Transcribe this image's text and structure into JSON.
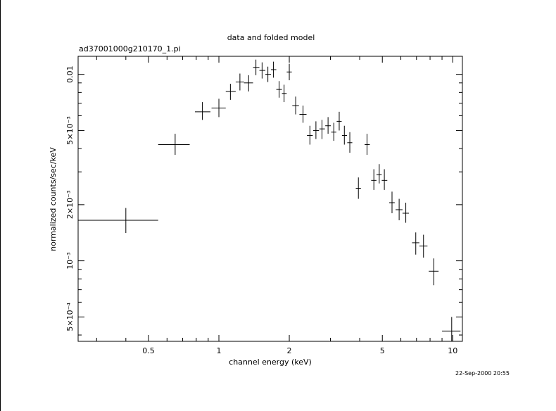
{
  "chart_data": {
    "type": "scatter",
    "title": "data and folded model",
    "subtitle": "ad37001000g210170_1.pi",
    "xlabel": "channel energy (keV)",
    "ylabel": "normalized counts/sec/keV",
    "x_scale": "log",
    "y_scale": "log",
    "xlim": [
      0.25,
      11
    ],
    "ylim": [
      0.00037,
      0.0125
    ],
    "x_ticks": [
      {
        "value": 0.5,
        "label": "0.5"
      },
      {
        "value": 1,
        "label": "1"
      },
      {
        "value": 2,
        "label": "2"
      },
      {
        "value": 5,
        "label": "5"
      },
      {
        "value": 10,
        "label": "10"
      }
    ],
    "y_ticks": [
      {
        "value": 0.01,
        "label": "0.01"
      },
      {
        "value": 0.005,
        "label": "5×10⁻³"
      },
      {
        "value": 0.002,
        "label": "2×10⁻³"
      },
      {
        "value": 0.001,
        "label": "10⁻³"
      },
      {
        "value": 0.0005,
        "label": "5×10⁻⁴"
      }
    ],
    "grid": false,
    "timestamp": "22-Sep-2000 20:55",
    "color": "#000000",
    "points": [
      {
        "x": 0.4,
        "xlo": 0.25,
        "xhi": 0.55,
        "y": 0.00165,
        "ylo": 0.00141,
        "yhi": 0.00192
      },
      {
        "x": 0.65,
        "xlo": 0.55,
        "xhi": 0.75,
        "y": 0.0042,
        "ylo": 0.0037,
        "yhi": 0.0048
      },
      {
        "x": 0.85,
        "xlo": 0.79,
        "xhi": 0.92,
        "y": 0.0063,
        "ylo": 0.0057,
        "yhi": 0.0071
      },
      {
        "x": 1.0,
        "xlo": 0.93,
        "xhi": 1.07,
        "y": 0.0066,
        "ylo": 0.0059,
        "yhi": 0.0074
      },
      {
        "x": 1.12,
        "xlo": 1.07,
        "xhi": 1.18,
        "y": 0.0081,
        "ylo": 0.0073,
        "yhi": 0.0089
      },
      {
        "x": 1.23,
        "xlo": 1.18,
        "xhi": 1.28,
        "y": 0.0091,
        "ylo": 0.0082,
        "yhi": 0.0101
      },
      {
        "x": 1.34,
        "xlo": 1.28,
        "xhi": 1.4,
        "y": 0.009,
        "ylo": 0.0081,
        "yhi": 0.0099
      },
      {
        "x": 1.44,
        "xlo": 1.4,
        "xhi": 1.49,
        "y": 0.0109,
        "ylo": 0.0099,
        "yhi": 0.012
      },
      {
        "x": 1.53,
        "xlo": 1.49,
        "xhi": 1.58,
        "y": 0.0105,
        "ylo": 0.0095,
        "yhi": 0.0116
      },
      {
        "x": 1.62,
        "xlo": 1.58,
        "xhi": 1.67,
        "y": 0.01,
        "ylo": 0.0091,
        "yhi": 0.011
      },
      {
        "x": 1.71,
        "xlo": 1.67,
        "xhi": 1.76,
        "y": 0.0106,
        "ylo": 0.0096,
        "yhi": 0.0117
      },
      {
        "x": 1.81,
        "xlo": 1.76,
        "xhi": 1.86,
        "y": 0.0083,
        "ylo": 0.0075,
        "yhi": 0.0092
      },
      {
        "x": 1.9,
        "xlo": 1.86,
        "xhi": 1.95,
        "y": 0.0079,
        "ylo": 0.0071,
        "yhi": 0.0088
      },
      {
        "x": 2.0,
        "xlo": 1.95,
        "xhi": 2.05,
        "y": 0.0103,
        "ylo": 0.0093,
        "yhi": 0.0114
      },
      {
        "x": 2.13,
        "xlo": 2.06,
        "xhi": 2.2,
        "y": 0.0068,
        "ylo": 0.0061,
        "yhi": 0.0076
      },
      {
        "x": 2.29,
        "xlo": 2.21,
        "xhi": 2.37,
        "y": 0.0061,
        "ylo": 0.0055,
        "yhi": 0.0068
      },
      {
        "x": 2.45,
        "xlo": 2.38,
        "xhi": 2.52,
        "y": 0.0047,
        "ylo": 0.0042,
        "yhi": 0.0053
      },
      {
        "x": 2.6,
        "xlo": 2.53,
        "xhi": 2.68,
        "y": 0.005,
        "ylo": 0.0045,
        "yhi": 0.0056
      },
      {
        "x": 2.76,
        "xlo": 2.69,
        "xhi": 2.84,
        "y": 0.0051,
        "ylo": 0.0045,
        "yhi": 0.0057
      },
      {
        "x": 2.93,
        "xlo": 2.85,
        "xhi": 3.01,
        "y": 0.0053,
        "ylo": 0.0048,
        "yhi": 0.0059
      },
      {
        "x": 3.1,
        "xlo": 3.02,
        "xhi": 3.18,
        "y": 0.0049,
        "ylo": 0.0044,
        "yhi": 0.0055
      },
      {
        "x": 3.27,
        "xlo": 3.19,
        "xhi": 3.35,
        "y": 0.0056,
        "ylo": 0.005,
        "yhi": 0.0063
      },
      {
        "x": 3.44,
        "xlo": 3.36,
        "xhi": 3.53,
        "y": 0.0047,
        "ylo": 0.0042,
        "yhi": 0.0053
      },
      {
        "x": 3.63,
        "xlo": 3.54,
        "xhi": 3.72,
        "y": 0.0043,
        "ylo": 0.0038,
        "yhi": 0.0049
      },
      {
        "x": 3.95,
        "xlo": 3.85,
        "xhi": 4.05,
        "y": 0.00245,
        "ylo": 0.00215,
        "yhi": 0.0028
      },
      {
        "x": 4.3,
        "xlo": 4.2,
        "xhi": 4.42,
        "y": 0.0042,
        "ylo": 0.0037,
        "yhi": 0.0048
      },
      {
        "x": 4.6,
        "xlo": 4.48,
        "xhi": 4.72,
        "y": 0.0027,
        "ylo": 0.0024,
        "yhi": 0.0031
      },
      {
        "x": 4.85,
        "xlo": 4.72,
        "xhi": 4.97,
        "y": 0.0029,
        "ylo": 0.0026,
        "yhi": 0.0033
      },
      {
        "x": 5.1,
        "xlo": 4.97,
        "xhi": 5.25,
        "y": 0.0027,
        "ylo": 0.0024,
        "yhi": 0.0031
      },
      {
        "x": 5.5,
        "xlo": 5.35,
        "xhi": 5.65,
        "y": 0.00205,
        "ylo": 0.0018,
        "yhi": 0.00235
      },
      {
        "x": 5.9,
        "xlo": 5.7,
        "xhi": 6.1,
        "y": 0.00188,
        "ylo": 0.00165,
        "yhi": 0.00215
      },
      {
        "x": 6.3,
        "xlo": 6.1,
        "xhi": 6.5,
        "y": 0.0018,
        "ylo": 0.0016,
        "yhi": 0.00205
      },
      {
        "x": 6.95,
        "xlo": 6.7,
        "xhi": 7.2,
        "y": 0.00125,
        "ylo": 0.00108,
        "yhi": 0.00142
      },
      {
        "x": 7.5,
        "xlo": 7.2,
        "xhi": 7.8,
        "y": 0.0012,
        "ylo": 0.00104,
        "yhi": 0.00138
      },
      {
        "x": 8.3,
        "xlo": 7.9,
        "xhi": 8.7,
        "y": 0.00088,
        "ylo": 0.00074,
        "yhi": 0.00103
      },
      {
        "x": 9.9,
        "xlo": 9.0,
        "xhi": 10.8,
        "y": 0.00042,
        "ylo": 0.00035,
        "yhi": 0.0005
      }
    ]
  }
}
